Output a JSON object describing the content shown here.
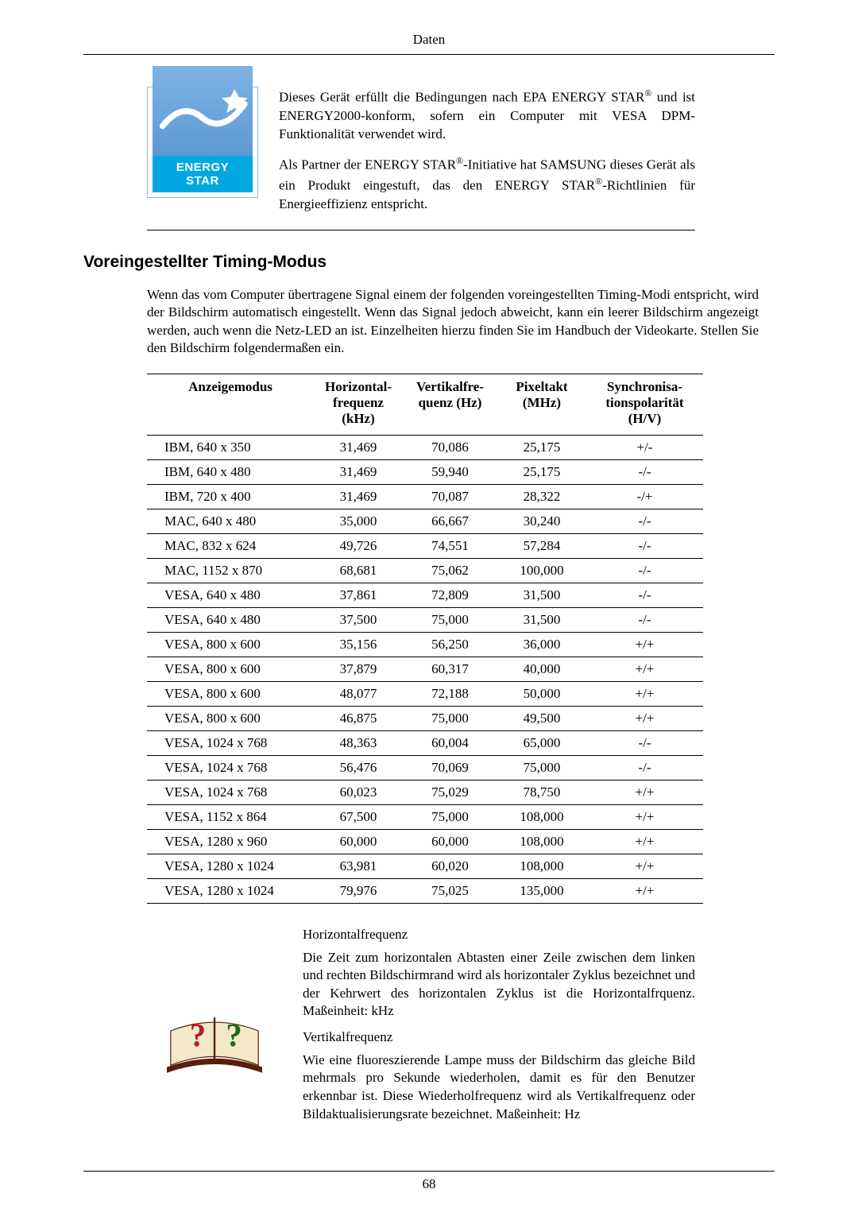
{
  "header": {
    "title": "Daten"
  },
  "energy": {
    "logo_label": "ENERGY STAR",
    "para1_a": "Dieses Gerät erfüllt die Bedingungen nach EPA ENERGY STAR",
    "para1_b": " und ist ENERGY2000-konform, sofern ein Computer mit VESA DPM-Funktionalität verwendet wird.",
    "para2_a": "Als Partner der ENERGY STAR",
    "para2_b": "-Initiative hat SAMSUNG dieses Gerät als ein Produkt eingestuft, das den ENERGY STAR",
    "para2_c": "-Richtlinien für Energieeffizienz entspricht.",
    "reg": "®"
  },
  "section": {
    "title": "Voreingestellter Timing-Modus"
  },
  "intro": {
    "text": "Wenn das vom Computer übertragene Signal einem der folgenden voreingestellten Timing-Modi entspricht, wird der Bildschirm automatisch eingestellt. Wenn das Signal jedoch abweicht, kann ein leerer Bildschirm angezeigt werden, auch wenn die Netz-LED an ist. Einzelheiten hierzu finden Sie im Handbuch der Videokarte. Stellen Sie den Bildschirm folgendermaßen ein."
  },
  "table": {
    "columns": [
      "Anzeigemodus",
      "Horizontal-\nfrequenz\n(kHz)",
      "Vertikalfre-\nquenz (Hz)",
      "Pixeltakt\n(MHz)",
      "Synchronisa-\ntionspolarität\n(H/V)"
    ],
    "col_widths": [
      "30%",
      "16%",
      "17%",
      "16%",
      "21%"
    ],
    "rows": [
      [
        "IBM, 640 x 350",
        "31,469",
        "70,086",
        "25,175",
        "+/-"
      ],
      [
        "IBM, 640 x 480",
        "31,469",
        "59,940",
        "25,175",
        "-/-"
      ],
      [
        "IBM, 720 x 400",
        "31,469",
        "70,087",
        "28,322",
        "-/+"
      ],
      [
        "MAC, 640 x 480",
        "35,000",
        "66,667",
        "30,240",
        "-/-"
      ],
      [
        "MAC, 832 x 624",
        "49,726",
        "74,551",
        "57,284",
        "-/-"
      ],
      [
        "MAC, 1152 x 870",
        "68,681",
        "75,062",
        "100,000",
        "-/-"
      ],
      [
        "VESA, 640 x 480",
        "37,861",
        "72,809",
        "31,500",
        "-/-"
      ],
      [
        "VESA, 640 x 480",
        "37,500",
        "75,000",
        "31,500",
        "-/-"
      ],
      [
        "VESA, 800 x 600",
        "35,156",
        "56,250",
        "36,000",
        "+/+"
      ],
      [
        "VESA, 800 x 600",
        "37,879",
        "60,317",
        "40,000",
        "+/+"
      ],
      [
        "VESA, 800 x 600",
        "48,077",
        "72,188",
        "50,000",
        "+/+"
      ],
      [
        "VESA, 800 x 600",
        "46,875",
        "75,000",
        "49,500",
        "+/+"
      ],
      [
        "VESA, 1024 x 768",
        "48,363",
        "60,004",
        "65,000",
        "-/-"
      ],
      [
        "VESA, 1024 x 768",
        "56,476",
        "70,069",
        "75,000",
        "-/-"
      ],
      [
        "VESA, 1024 x 768",
        "60,023",
        "75,029",
        "78,750",
        "+/+"
      ],
      [
        "VESA, 1152 x 864",
        "67,500",
        "75,000",
        "108,000",
        "+/+"
      ],
      [
        "VESA, 1280 x 960",
        "60,000",
        "60,000",
        "108,000",
        "+/+"
      ],
      [
        "VESA, 1280 x 1024",
        "63,981",
        "60,020",
        "108,000",
        "+/+"
      ],
      [
        "VESA, 1280 x 1024",
        "79,976",
        "75,025",
        "135,000",
        "+/+"
      ]
    ]
  },
  "defs": {
    "h_label": "Horizontalfrequenz",
    "h_text": "Die Zeit zum horizontalen Abtasten einer Zeile zwischen dem linken und rechten Bildschirmrand wird als horizontaler Zyklus bezeichnet und der Kehrwert des horizontalen Zyklus ist die Horizontalfrquenz. Maßeinheit: kHz",
    "v_label": "Vertikalfrequenz",
    "v_text": "Wie eine fluoreszierende Lampe muss der Bildschirm das gleiche Bild mehrmals pro Sekunde wiederholen, damit es für den Benutzer erkennbar ist. Diese Wiederholfrequenz wird als Vertikalfrequenz oder Bildaktualisierungsrate bezeichnet. Maßeinheit: Hz"
  },
  "footer": {
    "page_number": "68"
  }
}
